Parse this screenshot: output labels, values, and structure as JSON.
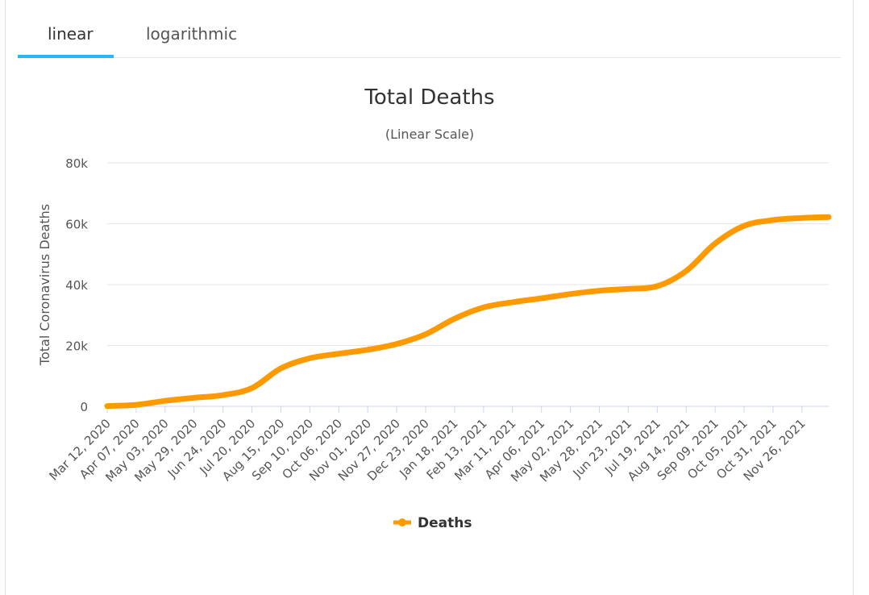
{
  "tabs": [
    {
      "label": "linear",
      "active": true
    },
    {
      "label": "logarithmic",
      "active": false
    }
  ],
  "colors": {
    "series": "#ff9900",
    "tab_indicator": "#29b6f6",
    "grid": "#e6e6e6"
  },
  "chart_data": {
    "type": "line",
    "title": "Total Deaths",
    "subtitle": "(Linear Scale)",
    "ylabel": "Total Coronavirus Deaths",
    "xlabel": "",
    "ylim": [
      0,
      80000
    ],
    "yticks": [
      0,
      20000,
      40000,
      60000,
      80000
    ],
    "ytick_labels": [
      "0",
      "20k",
      "40k",
      "60k",
      "80k"
    ],
    "x_tick_labels": [
      "Mar 12, 2020",
      "Apr 07, 2020",
      "May 03, 2020",
      "May 29, 2020",
      "Jun 24, 2020",
      "Jul 20, 2020",
      "Aug 15, 2020",
      "Sep 10, 2020",
      "Oct 06, 2020",
      "Nov 01, 2020",
      "Nov 27, 2020",
      "Dec 23, 2020",
      "Jan 18, 2021",
      "Feb 13, 2021",
      "Mar 11, 2021",
      "Apr 06, 2021",
      "May 02, 2021",
      "May 28, 2021",
      "Jun 23, 2021",
      "Jul 19, 2021",
      "Aug 14, 2021",
      "Sep 09, 2021",
      "Oct 05, 2021",
      "Oct 31, 2021",
      "Nov 26, 2021"
    ],
    "x_range": [
      "Mar 12, 2020",
      "Dec 20, 2021"
    ],
    "grid": true,
    "legend": "bottom-center",
    "series": [
      {
        "name": "Deaths",
        "color": "#ff9900",
        "x": [
          "Mar 12, 2020",
          "Apr 07, 2020",
          "May 03, 2020",
          "May 29, 2020",
          "Jun 24, 2020",
          "Jul 20, 2020",
          "Aug 15, 2020",
          "Sep 10, 2020",
          "Oct 06, 2020",
          "Nov 01, 2020",
          "Nov 27, 2020",
          "Dec 23, 2020",
          "Jan 18, 2021",
          "Feb 13, 2021",
          "Mar 11, 2021",
          "Apr 06, 2021",
          "May 02, 2021",
          "May 28, 2021",
          "Jun 23, 2021",
          "Jul 19, 2021",
          "Aug 14, 2021",
          "Sep 09, 2021",
          "Oct 05, 2021",
          "Oct 31, 2021",
          "Nov 26, 2021",
          "Dec 20, 2021"
        ],
        "values": [
          100,
          500,
          1800,
          2800,
          3700,
          6000,
          12500,
          15800,
          17300,
          18600,
          20500,
          23700,
          28800,
          32500,
          34200,
          35500,
          36900,
          38000,
          38600,
          39500,
          44500,
          53500,
          59300,
          61200,
          61900,
          62200
        ]
      }
    ]
  }
}
